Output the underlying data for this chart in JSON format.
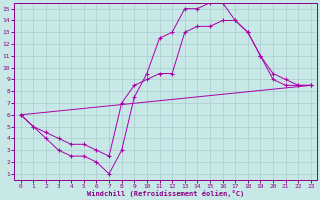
{
  "bg_color": "#c8e8e8",
  "grid_color": "#aacccc",
  "line_color": "#aa00aa",
  "xlabel": "Windchill (Refroidissement éolien,°C)",
  "xlim": [
    -0.5,
    23.5
  ],
  "ylim": [
    0.5,
    15.5
  ],
  "xticks": [
    0,
    1,
    2,
    3,
    4,
    5,
    6,
    7,
    8,
    9,
    10,
    11,
    12,
    13,
    14,
    15,
    16,
    17,
    18,
    19,
    20,
    21,
    22,
    23
  ],
  "yticks": [
    1,
    2,
    3,
    4,
    5,
    6,
    7,
    8,
    9,
    10,
    11,
    12,
    13,
    14,
    15
  ],
  "curve1_x": [
    0,
    1,
    2,
    3,
    4,
    5,
    6,
    7,
    8,
    9,
    10,
    11,
    12,
    13,
    14,
    15,
    16,
    17,
    18,
    19,
    20,
    21,
    22,
    23
  ],
  "curve1_y": [
    6,
    5,
    4,
    3,
    2.5,
    2.5,
    2,
    1,
    3,
    7.5,
    9.5,
    12.5,
    13,
    15,
    15,
    15.5,
    15.5,
    14,
    13,
    11,
    9,
    8.5,
    8.5,
    8.5
  ],
  "curve2_x": [
    0,
    1,
    2,
    3,
    4,
    5,
    6,
    7,
    8,
    9,
    10,
    11,
    12,
    13,
    14,
    15,
    16,
    17,
    18,
    19,
    20,
    21,
    22,
    23
  ],
  "curve2_y": [
    6,
    5,
    4.5,
    4,
    3.5,
    3.5,
    3,
    2.5,
    7,
    8.5,
    9,
    9.5,
    9.5,
    13,
    13.5,
    13.5,
    14,
    14,
    13,
    11,
    9.5,
    9,
    8.5,
    8.5
  ],
  "line_x": [
    0,
    23
  ],
  "line_y": [
    6,
    8.5
  ]
}
